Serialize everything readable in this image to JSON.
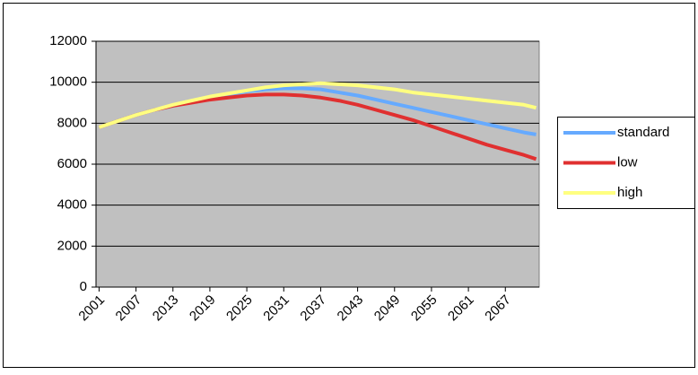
{
  "chart_data": {
    "type": "line",
    "x": [
      2001,
      2004,
      2007,
      2010,
      2013,
      2016,
      2019,
      2022,
      2025,
      2028,
      2031,
      2034,
      2037,
      2040,
      2043,
      2046,
      2049,
      2052,
      2055,
      2058,
      2061,
      2064,
      2067,
      2070,
      2072
    ],
    "xlim": [
      2000.5,
      2072.5
    ],
    "xticks": [
      2001,
      2007,
      2013,
      2019,
      2025,
      2031,
      2037,
      2043,
      2049,
      2055,
      2061,
      2067
    ],
    "ylim": [
      0,
      12000
    ],
    "yticks": [
      0,
      2000,
      4000,
      6000,
      8000,
      10000,
      12000
    ],
    "grid": true,
    "legend": "right",
    "series": [
      {
        "name": "standard",
        "color": "#66aaff",
        "values": [
          7800,
          8100,
          8400,
          8650,
          8850,
          9050,
          9250,
          9400,
          9550,
          9650,
          9700,
          9700,
          9650,
          9500,
          9350,
          9150,
          8950,
          8750,
          8550,
          8350,
          8150,
          7950,
          7750,
          7550,
          7450
        ]
      },
      {
        "name": "low",
        "color": "#e03030",
        "values": [
          7800,
          8100,
          8400,
          8650,
          8850,
          9000,
          9150,
          9250,
          9350,
          9400,
          9400,
          9350,
          9250,
          9100,
          8900,
          8650,
          8400,
          8150,
          7850,
          7550,
          7250,
          6950,
          6700,
          6450,
          6250
        ]
      },
      {
        "name": "high",
        "color": "#ffff80",
        "values": [
          7800,
          8100,
          8400,
          8650,
          8900,
          9100,
          9300,
          9450,
          9600,
          9750,
          9850,
          9900,
          9950,
          9900,
          9850,
          9750,
          9650,
          9500,
          9400,
          9300,
          9200,
          9100,
          9000,
          8900,
          8750
        ]
      }
    ]
  }
}
